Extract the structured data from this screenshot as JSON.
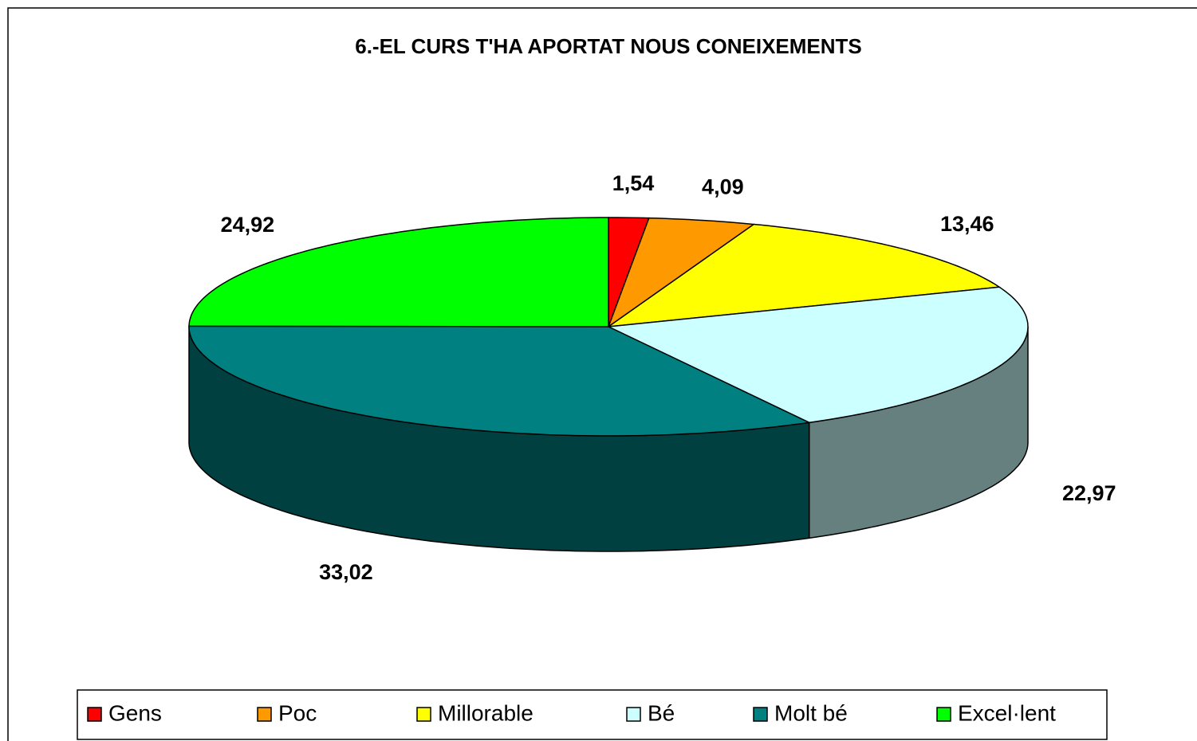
{
  "chart_data": {
    "type": "pie3d",
    "title": "6.-EL CURS T'HA APORTAT NOUS CONEIXEMENTS",
    "categories": [
      "Gens",
      "Poc",
      "Millorable",
      "Bé",
      "Molt bé",
      "Excel·lent"
    ],
    "values": [
      1.54,
      4.09,
      13.46,
      22.97,
      33.02,
      24.92
    ],
    "value_labels": [
      "1,54",
      "4,09",
      "13,46",
      "22,97",
      "33,02",
      "24,92"
    ],
    "colors": [
      "#ff0000",
      "#ff9900",
      "#ffff00",
      "#ccffff",
      "#008080",
      "#00ff00"
    ],
    "legend": "bottom"
  }
}
